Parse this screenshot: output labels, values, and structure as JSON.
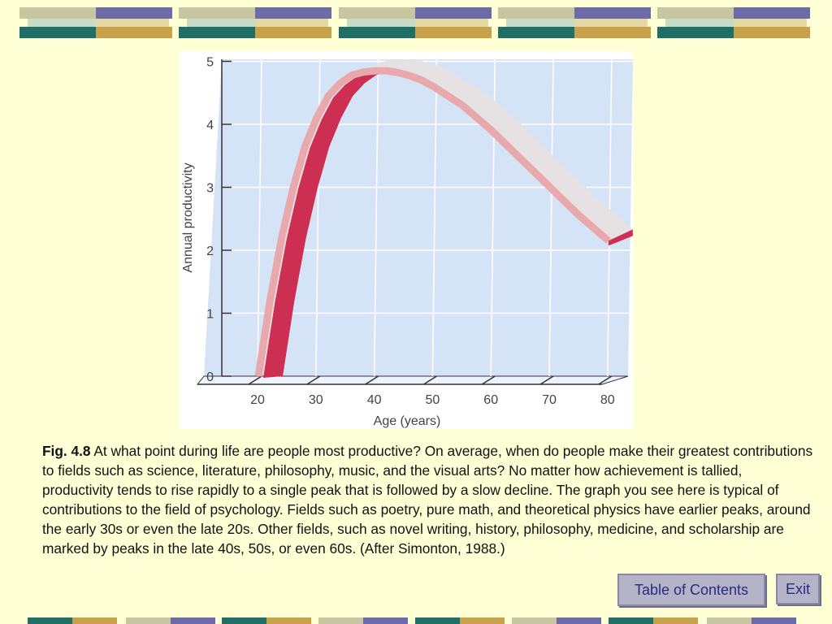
{
  "chart_data": {
    "type": "line",
    "x": [
      20,
      22,
      24,
      26,
      28,
      30,
      32,
      34,
      36,
      38,
      40,
      42,
      44,
      46,
      48,
      50,
      55,
      60,
      65,
      70,
      75,
      80
    ],
    "y": [
      0,
      1.2,
      2.2,
      3.0,
      3.65,
      4.1,
      4.45,
      4.65,
      4.78,
      4.83,
      4.85,
      4.85,
      4.82,
      4.77,
      4.7,
      4.6,
      4.3,
      3.9,
      3.45,
      3.0,
      2.55,
      2.15
    ],
    "xlabel": "Age (years)",
    "ylabel": "Annual productivity",
    "xlim": [
      15,
      82
    ],
    "ylim": [
      0,
      5
    ],
    "xticks": [
      "20",
      "30",
      "40",
      "50",
      "60",
      "70",
      "80"
    ],
    "yticks": [
      "0",
      "1",
      "2",
      "3",
      "4",
      "5"
    ],
    "grid": true,
    "colors": {
      "plot_bg": "#d5e3f7",
      "ribbon_top": "#e6e2e3",
      "ribbon_edge": "#e9a8ac",
      "ribbon_side": "#cc2f52"
    }
  },
  "caption": {
    "label": "Fig. 4.8",
    "text": " At what point during life are people most productive? On average, when do people make their greatest contributions to fields such as science, literature, philosophy, music, and the visual arts? No matter how achievement is tallied, productivity tends to rise rapidly to a single peak that is followed by a slow decline. The graph you see here is typical of contributions to the field of psychology. Fields such as poetry, pure math, and theoretical physics have earlier peaks, around the early 30s or even the late 20s. Other fields, such as novel writing, history, philosophy,   medicine, and scholarship are marked by peaks in the late 40s, 50s, or even 60s.   (After Simonton, 1988.)"
  },
  "nav": {
    "toc_label": "Table of Contents",
    "exit_label": "Exit"
  }
}
